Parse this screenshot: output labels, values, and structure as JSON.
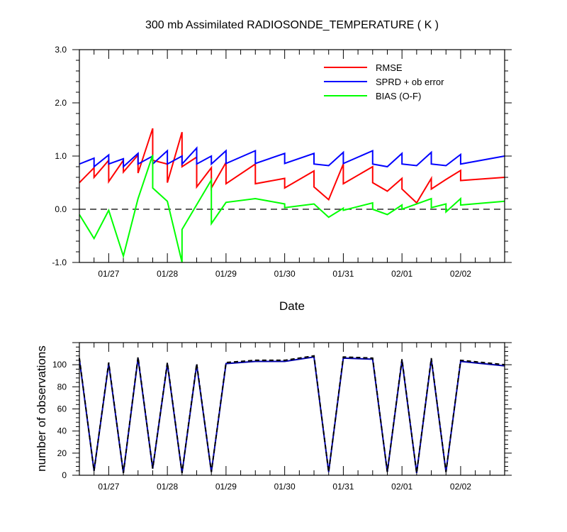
{
  "chart_data": [
    {
      "type": "line",
      "title": "300 mb Assimilated RADIOSONDE_TEMPERATURE ( K )",
      "xlabel": "Date",
      "ylabel": "",
      "xlim": [
        "01/26 12:00",
        "02/02 18:00"
      ],
      "ylim": [
        -1.0,
        3.0
      ],
      "ytick_values": [
        -1.0,
        0.0,
        1.0,
        2.0,
        3.0
      ],
      "ytick_labels": [
        "-1.0",
        "0.0",
        "1.0",
        "2.0",
        "3.0"
      ],
      "xtick_labels": [
        "01/27",
        "01/28",
        "01/29",
        "01/30",
        "01/31",
        "02/01",
        "02/02"
      ],
      "legend_position": "top-right",
      "reference_line": 0.0,
      "series": [
        {
          "name": "RMSE",
          "color": "#ff0000",
          "points": [
            [
              "01/26 12:00",
              0.5
            ],
            [
              "01/26 18:00",
              0.78
            ],
            [
              "01/26 18:00",
              0.6
            ],
            [
              "01/27 00:00",
              0.92
            ],
            [
              "01/27 00:00",
              0.52
            ],
            [
              "01/27 06:00",
              0.92
            ],
            [
              "01/27 06:00",
              0.7
            ],
            [
              "01/27 12:00",
              1.02
            ],
            [
              "01/27 12:00",
              0.68
            ],
            [
              "01/27 18:00",
              1.52
            ],
            [
              "01/27 18:00",
              0.92
            ],
            [
              "01/28 00:00",
              0.85
            ],
            [
              "01/28 00:00",
              0.5
            ],
            [
              "01/28 06:00",
              1.45
            ],
            [
              "01/28 06:00",
              0.8
            ],
            [
              "01/28 12:00",
              0.98
            ],
            [
              "01/28 12:00",
              0.42
            ],
            [
              "01/28 18:00",
              0.78
            ],
            [
              "01/28 18:00",
              0.4
            ],
            [
              "01/29 00:00",
              0.88
            ],
            [
              "01/29 00:00",
              0.48
            ],
            [
              "01/29 12:00",
              0.85
            ],
            [
              "01/29 12:00",
              0.48
            ],
            [
              "01/30 00:00",
              0.58
            ],
            [
              "01/30 00:00",
              0.4
            ],
            [
              "01/30 12:00",
              0.72
            ],
            [
              "01/30 12:00",
              0.42
            ],
            [
              "01/30 18:00",
              0.18
            ],
            [
              "01/31 00:00",
              0.85
            ],
            [
              "01/31 00:00",
              0.48
            ],
            [
              "01/31 12:00",
              0.8
            ],
            [
              "01/31 12:00",
              0.5
            ],
            [
              "01/31 18:00",
              0.34
            ],
            [
              "02/01 00:00",
              0.58
            ],
            [
              "02/01 00:00",
              0.38
            ],
            [
              "02/01 06:00",
              0.12
            ],
            [
              "02/01 12:00",
              0.58
            ],
            [
              "02/01 12:00",
              0.38
            ],
            [
              "02/01 18:00",
              0.56
            ],
            [
              "02/02 00:00",
              0.73
            ],
            [
              "02/02 00:00",
              0.54
            ],
            [
              "02/02 18:00",
              0.6
            ]
          ]
        },
        {
          "name": "SPRD + ob error",
          "color": "#0000ff",
          "points": [
            [
              "01/26 12:00",
              0.85
            ],
            [
              "01/26 18:00",
              0.96
            ],
            [
              "01/26 18:00",
              0.8
            ],
            [
              "01/27 00:00",
              1.02
            ],
            [
              "01/27 00:00",
              0.85
            ],
            [
              "01/27 06:00",
              0.95
            ],
            [
              "01/27 06:00",
              0.8
            ],
            [
              "01/27 12:00",
              1.05
            ],
            [
              "01/27 12:00",
              0.85
            ],
            [
              "01/27 18:00",
              1.0
            ],
            [
              "01/27 18:00",
              0.85
            ],
            [
              "01/28 00:00",
              1.1
            ],
            [
              "01/28 00:00",
              0.85
            ],
            [
              "01/28 06:00",
              1.0
            ],
            [
              "01/28 06:00",
              0.85
            ],
            [
              "01/28 12:00",
              1.15
            ],
            [
              "01/28 12:00",
              0.85
            ],
            [
              "01/28 18:00",
              1.0
            ],
            [
              "01/28 18:00",
              0.85
            ],
            [
              "01/29 00:00",
              1.1
            ],
            [
              "01/29 00:00",
              0.86
            ],
            [
              "01/29 12:00",
              1.1
            ],
            [
              "01/29 12:00",
              0.86
            ],
            [
              "01/30 00:00",
              1.05
            ],
            [
              "01/30 00:00",
              0.86
            ],
            [
              "01/30 12:00",
              1.05
            ],
            [
              "01/30 12:00",
              0.85
            ],
            [
              "01/30 18:00",
              0.82
            ],
            [
              "01/31 00:00",
              1.07
            ],
            [
              "01/31 00:00",
              0.86
            ],
            [
              "01/31 12:00",
              1.1
            ],
            [
              "01/31 12:00",
              0.85
            ],
            [
              "01/31 18:00",
              0.8
            ],
            [
              "02/01 00:00",
              1.05
            ],
            [
              "02/01 00:00",
              0.85
            ],
            [
              "02/01 06:00",
              0.82
            ],
            [
              "02/01 12:00",
              1.07
            ],
            [
              "02/01 12:00",
              0.85
            ],
            [
              "02/01 18:00",
              0.82
            ],
            [
              "02/02 00:00",
              1.03
            ],
            [
              "02/02 00:00",
              0.85
            ],
            [
              "02/02 18:00",
              1.0
            ]
          ]
        },
        {
          "name": "BIAS (O-F)",
          "color": "#00ff00",
          "points": [
            [
              "01/26 12:00",
              -0.1
            ],
            [
              "01/26 18:00",
              -0.55
            ],
            [
              "01/27 00:00",
              -0.02
            ],
            [
              "01/27 06:00",
              -0.88
            ],
            [
              "01/27 12:00",
              0.2
            ],
            [
              "01/27 18:00",
              1.02
            ],
            [
              "01/27 18:00",
              0.4
            ],
            [
              "01/28 00:00",
              0.15
            ],
            [
              "01/28 06:00",
              -1.0
            ],
            [
              "01/28 06:00",
              -0.38
            ],
            [
              "01/28 18:00",
              0.55
            ],
            [
              "01/28 18:00",
              -0.27
            ],
            [
              "01/29 00:00",
              0.13
            ],
            [
              "01/29 12:00",
              0.2
            ],
            [
              "01/30 00:00",
              0.1
            ],
            [
              "01/30 00:00",
              0.03
            ],
            [
              "01/30 12:00",
              0.1
            ],
            [
              "01/30 18:00",
              -0.15
            ],
            [
              "01/31 00:00",
              0.02
            ],
            [
              "01/31 00:00",
              -0.02
            ],
            [
              "01/31 12:00",
              0.12
            ],
            [
              "01/31 12:00",
              0.0
            ],
            [
              "01/31 18:00",
              -0.1
            ],
            [
              "02/01 00:00",
              0.08
            ],
            [
              "02/01 00:00",
              0.0
            ],
            [
              "02/01 12:00",
              0.2
            ],
            [
              "02/01 12:00",
              0.03
            ],
            [
              "02/01 18:00",
              0.1
            ],
            [
              "02/01 18:00",
              -0.05
            ],
            [
              "02/02 00:00",
              0.2
            ],
            [
              "02/02 00:00",
              0.08
            ],
            [
              "02/02 18:00",
              0.15
            ]
          ]
        }
      ]
    },
    {
      "type": "line",
      "title": "",
      "xlabel": "",
      "ylabel": "number of observations",
      "xlim": [
        "01/26 12:00",
        "02/02 18:00"
      ],
      "ylim": [
        0,
        120
      ],
      "ytick_values": [
        0,
        20,
        40,
        60,
        80,
        100
      ],
      "ytick_labels": [
        "0",
        "20",
        "40",
        "60",
        "80",
        "100"
      ],
      "xtick_labels": [
        "01/27",
        "01/28",
        "01/29",
        "01/30",
        "01/31",
        "02/01",
        "02/02"
      ],
      "series": [
        {
          "style": "solid",
          "color": "#0000aa",
          "points": [
            [
              "01/26 12:00",
              105
            ],
            [
              "01/26 18:00",
              4
            ],
            [
              "01/27 00:00",
              101
            ],
            [
              "01/27 06:00",
              2
            ],
            [
              "01/27 12:00",
              106
            ],
            [
              "01/27 18:00",
              6
            ],
            [
              "01/28 00:00",
              101
            ],
            [
              "01/28 06:00",
              2
            ],
            [
              "01/28 12:00",
              100
            ],
            [
              "01/28 18:00",
              3
            ],
            [
              "01/29 00:00",
              101
            ],
            [
              "01/29 12:00",
              103
            ],
            [
              "01/30 00:00",
              103
            ],
            [
              "01/30 12:00",
              107
            ],
            [
              "01/30 18:00",
              3
            ],
            [
              "01/31 00:00",
              106
            ],
            [
              "01/31 12:00",
              105
            ],
            [
              "01/31 18:00",
              3
            ],
            [
              "02/01 00:00",
              104
            ],
            [
              "02/01 06:00",
              2
            ],
            [
              "02/01 12:00",
              105
            ],
            [
              "02/01 18:00",
              3
            ],
            [
              "02/02 00:00",
              103
            ],
            [
              "02/02 18:00",
              99
            ]
          ]
        },
        {
          "style": "dashed",
          "color": "#000000",
          "points": [
            [
              "01/26 12:00",
              106
            ],
            [
              "01/26 18:00",
              4
            ],
            [
              "01/27 00:00",
              102
            ],
            [
              "01/27 06:00",
              2
            ],
            [
              "01/27 12:00",
              107
            ],
            [
              "01/27 18:00",
              6
            ],
            [
              "01/28 00:00",
              102
            ],
            [
              "01/28 06:00",
              2
            ],
            [
              "01/28 12:00",
              101
            ],
            [
              "01/28 18:00",
              3
            ],
            [
              "01/29 00:00",
              102
            ],
            [
              "01/29 12:00",
              104
            ],
            [
              "01/30 00:00",
              104
            ],
            [
              "01/30 12:00",
              108
            ],
            [
              "01/30 18:00",
              3
            ],
            [
              "01/31 00:00",
              107
            ],
            [
              "01/31 12:00",
              106
            ],
            [
              "01/31 18:00",
              3
            ],
            [
              "02/01 00:00",
              105
            ],
            [
              "02/01 06:00",
              2
            ],
            [
              "02/01 12:00",
              106
            ],
            [
              "02/01 18:00",
              3
            ],
            [
              "02/02 00:00",
              104
            ],
            [
              "02/02 18:00",
              100
            ]
          ]
        }
      ]
    }
  ]
}
